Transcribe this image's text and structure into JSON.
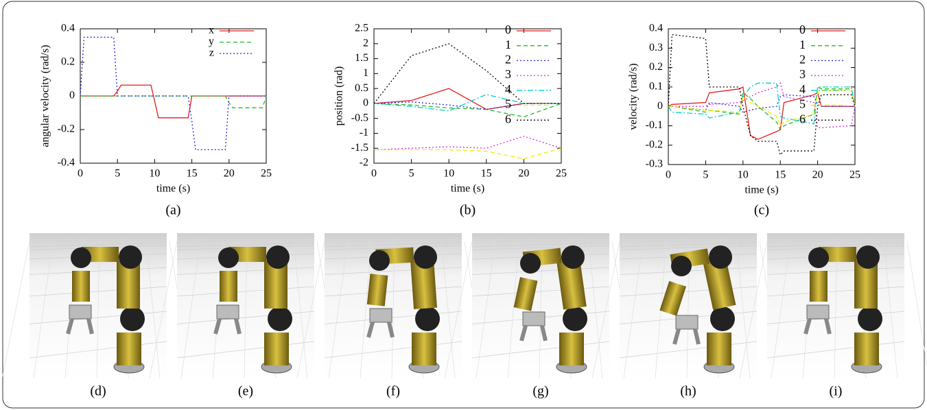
{
  "chart_data": [
    {
      "type": "line",
      "caption": "(a)",
      "xlabel": "time (s)",
      "ylabel": "angular velocity (rad/s)",
      "x": [
        0,
        0.5,
        1,
        4.5,
        5,
        5.5,
        9.5,
        10,
        10.5,
        14.5,
        15,
        15.5,
        19.5,
        20,
        20.5,
        24.5,
        25
      ],
      "xlim": [
        0,
        25
      ],
      "xticks": [
        0,
        5,
        10,
        15,
        20,
        25
      ],
      "ylim": [
        -0.4,
        0.4
      ],
      "yticks": [
        -0.4,
        -0.2,
        0,
        0.2,
        0.4
      ],
      "legend": "top-right",
      "series": [
        {
          "name": "x",
          "color": "#e41a1c",
          "style": "solid",
          "values": [
            0,
            0,
            0,
            0,
            0.03,
            0.065,
            0.065,
            -0.03,
            -0.13,
            -0.13,
            0,
            0,
            0,
            0,
            0,
            0,
            0
          ]
        },
        {
          "name": "y",
          "color": "#22bb22",
          "style": "dashed",
          "values": [
            0,
            0,
            0,
            0,
            0,
            0,
            0,
            0,
            0,
            0,
            0,
            0,
            0,
            -0.04,
            -0.07,
            -0.07,
            0
          ]
        },
        {
          "name": "z",
          "color": "#2222dd",
          "style": "dotted",
          "values": [
            0,
            0.35,
            0.35,
            0.35,
            0,
            0,
            0,
            0,
            0,
            0,
            -0.15,
            -0.32,
            -0.32,
            0,
            0,
            0,
            0
          ]
        }
      ]
    },
    {
      "type": "line",
      "caption": "(b)",
      "xlabel": "time (s)",
      "ylabel": "position (rad)",
      "x": [
        0,
        5,
        10,
        15,
        20,
        25
      ],
      "xlim": [
        0,
        25
      ],
      "xticks": [
        0,
        5,
        10,
        15,
        20,
        25
      ],
      "ylim": [
        -2,
        2.5
      ],
      "yticks": [
        -2,
        -1.5,
        -1,
        -0.5,
        0,
        0.5,
        1,
        1.5,
        2,
        2.5
      ],
      "legend": "top-right",
      "series": [
        {
          "name": "0",
          "color": "#e41a1c",
          "style": "solid",
          "values": [
            0,
            0.1,
            0.5,
            -0.2,
            0,
            0
          ]
        },
        {
          "name": "1",
          "color": "#22bb22",
          "style": "dashed",
          "values": [
            0,
            -0.05,
            -0.15,
            -0.2,
            -0.45,
            0
          ]
        },
        {
          "name": "2",
          "color": "#2222dd",
          "style": "dotted",
          "values": [
            0,
            0.05,
            -0.05,
            -0.2,
            0,
            0
          ]
        },
        {
          "name": "3",
          "color": "#e020e0",
          "style": "dotted",
          "values": [
            -1.55,
            -1.5,
            -1.45,
            -1.5,
            -1.1,
            -1.5
          ]
        },
        {
          "name": "4",
          "color": "#00cccc",
          "style": "dashdot",
          "values": [
            0,
            -0.1,
            -0.25,
            0.3,
            0,
            0
          ]
        },
        {
          "name": "5",
          "color": "#eeee00",
          "style": "dashed",
          "values": [
            -1.55,
            -1.55,
            -1.55,
            -1.6,
            -1.85,
            -1.5
          ]
        },
        {
          "name": "6",
          "color": "#000000",
          "style": "dotted",
          "values": [
            0,
            1.6,
            2,
            1.1,
            0,
            0
          ]
        }
      ]
    },
    {
      "type": "line",
      "caption": "(c)",
      "xlabel": "time (s)",
      "ylabel": "velocity (rad/s)",
      "x": [
        0,
        0.5,
        5,
        5.5,
        9.5,
        10,
        11,
        12,
        14.5,
        15,
        15.5,
        19.5,
        20,
        20.5,
        24.5,
        25
      ],
      "xlim": [
        0,
        25
      ],
      "xticks": [
        0,
        5,
        10,
        15,
        20,
        25
      ],
      "ylim": [
        -0.3,
        0.4
      ],
      "yticks": [
        -0.3,
        -0.2,
        -0.1,
        0,
        0.1,
        0.2,
        0.3,
        0.4
      ],
      "legend": "top-right",
      "series": [
        {
          "name": "0",
          "color": "#e41a1c",
          "style": "solid",
          "values": [
            0,
            0.01,
            0.02,
            0.07,
            0.09,
            0.1,
            -0.15,
            -0.17,
            -0.13,
            -0.12,
            0.02,
            0.06,
            0.07,
            0,
            0,
            0
          ]
        },
        {
          "name": "1",
          "color": "#22bb22",
          "style": "dashed",
          "values": [
            0,
            0,
            -0.03,
            -0.02,
            -0.04,
            0.07,
            0.04,
            0,
            -0.08,
            -0.12,
            -0.1,
            -0.04,
            0.1,
            0.09,
            0.09,
            0
          ]
        },
        {
          "name": "2",
          "color": "#2222dd",
          "style": "dotted",
          "values": [
            0,
            0,
            -0.02,
            0.02,
            0,
            -0.03,
            -0.02,
            -0.01,
            0,
            0.05,
            0.06,
            0.05,
            0.01,
            0,
            0,
            0
          ]
        },
        {
          "name": "3",
          "color": "#e020e0",
          "style": "dotted",
          "values": [
            0,
            0,
            0,
            0.01,
            0.02,
            0.03,
            0.05,
            0.07,
            0.1,
            0.12,
            0.05,
            0.02,
            -0.11,
            -0.11,
            -0.1,
            0
          ]
        },
        {
          "name": "4",
          "color": "#00cccc",
          "style": "dashdot",
          "values": [
            0,
            -0.03,
            -0.04,
            -0.06,
            -0.03,
            0.05,
            0.1,
            0.12,
            0.12,
            -0.05,
            -0.06,
            -0.09,
            0.1,
            0.1,
            0.1,
            0
          ]
        },
        {
          "name": "5",
          "color": "#eeee00",
          "style": "dashed",
          "values": [
            0,
            0,
            -0.02,
            -0.02,
            -0.03,
            0.05,
            0.02,
            0,
            -0.05,
            -0.1,
            -0.08,
            -0.04,
            0.07,
            0.08,
            0.08,
            0
          ]
        },
        {
          "name": "6",
          "color": "#000000",
          "style": "dotted",
          "values": [
            0,
            0.37,
            0.35,
            0.1,
            0.1,
            0,
            -0.15,
            -0.18,
            -0.18,
            -0.25,
            -0.23,
            -0.23,
            0,
            0.06,
            0.06,
            0
          ]
        }
      ]
    }
  ],
  "images": [
    {
      "caption": "(d)"
    },
    {
      "caption": "(e)"
    },
    {
      "caption": "(f)"
    },
    {
      "caption": "(g)"
    },
    {
      "caption": "(h)"
    },
    {
      "caption": "(i)"
    }
  ]
}
